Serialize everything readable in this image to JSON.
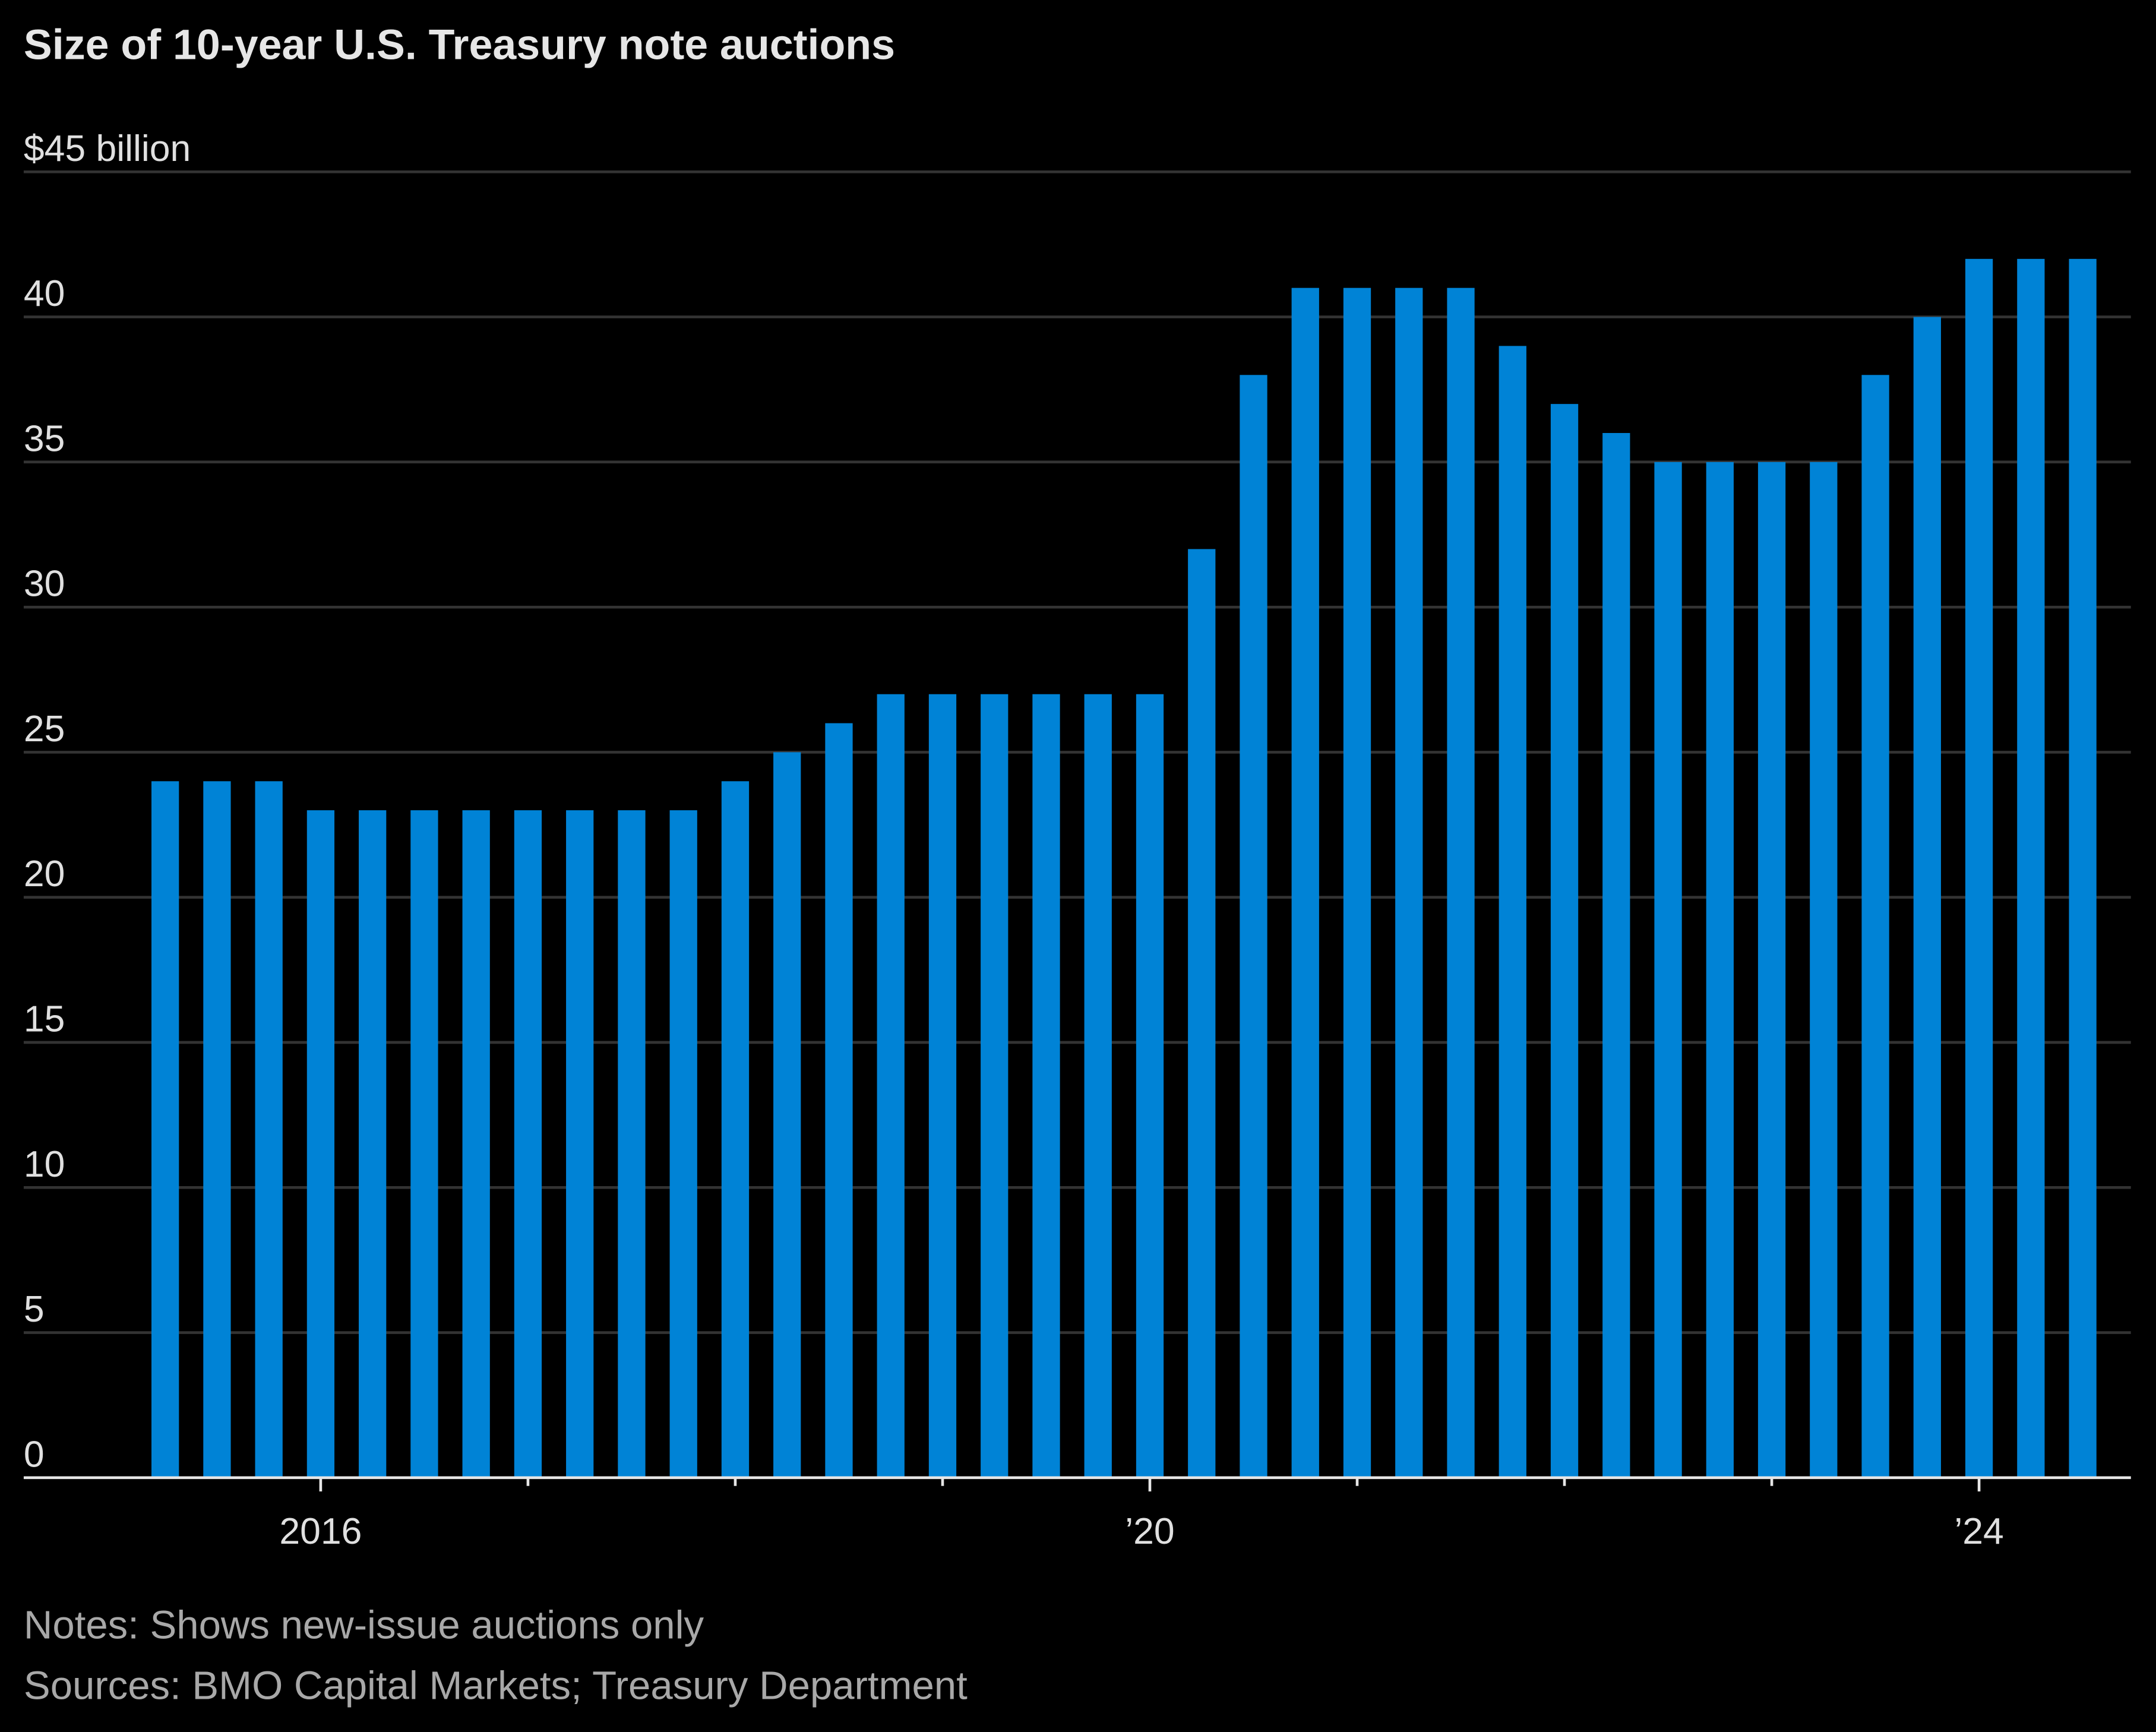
{
  "chart_data": {
    "type": "bar",
    "title": "Size of 10-year U.S. Treasury note auctions",
    "notes": "Notes: Shows new-issue auctions only",
    "sources": "Sources: BMO Capital Markets; Treasury Department",
    "x": [
      0,
      1,
      2,
      3,
      4,
      5,
      6,
      7,
      8,
      9,
      10,
      11,
      12,
      13,
      14,
      15,
      16,
      17,
      18,
      19,
      20,
      21,
      22,
      23,
      24,
      25,
      26,
      27,
      28,
      29,
      30,
      31,
      32,
      33,
      34,
      35,
      36,
      37
    ],
    "values": [
      24,
      24,
      24,
      23,
      23,
      23,
      23,
      23,
      23,
      23,
      23,
      24,
      25,
      26,
      27,
      27,
      27,
      27,
      27,
      27,
      32,
      38,
      41,
      41,
      41,
      41,
      39,
      37,
      36,
      35,
      35,
      35,
      35,
      38,
      40,
      42,
      42,
      42
    ],
    "color": "#0083d6",
    "xlim": [
      -2.73,
      37.93
    ],
    "xticks": [
      {
        "value": 3,
        "label": "2016"
      },
      {
        "value": 19,
        "label": "’20"
      },
      {
        "value": 35,
        "label": "’24"
      }
    ],
    "x_minor_ticks": [
      7,
      11,
      15,
      23,
      27,
      31
    ],
    "ylim": [
      0,
      45
    ],
    "yticks": [
      0,
      5,
      10,
      15,
      20,
      25,
      30,
      35,
      40,
      {
        "value": 45,
        "label": "$45 billion"
      }
    ],
    "grid": true
  }
}
